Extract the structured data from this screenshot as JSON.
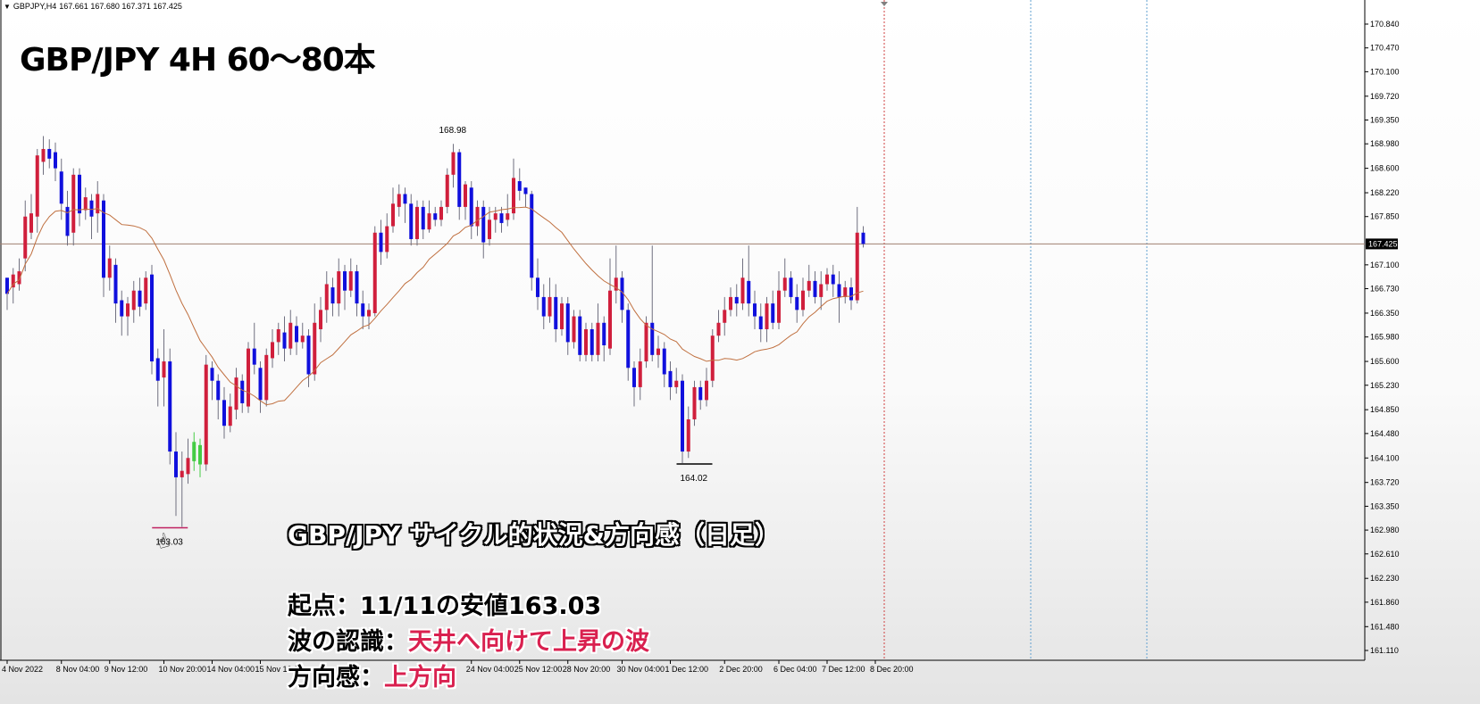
{
  "header": {
    "symbol": "GBPJPY,H4",
    "ohlc": "167.661 167.680 167.371 167.425"
  },
  "title": "GBP/JPY 4H 60～80本",
  "notes": {
    "heading": "GBP/JPY サイクル的状況&方向感（日足）",
    "line1_label": "起点：",
    "line1_value": "11/11の安値163.03",
    "line2_label": "波の認識：",
    "line2_value": "天井へ向けて上昇の波",
    "line3_label": "方向感：",
    "line3_value": "上方向"
  },
  "colors": {
    "bull": "#d01f3c",
    "bear": "#1010dd",
    "ma": "#c07040",
    "current_price_line": "#a08070",
    "vline_red": "#d04040",
    "vline_blue": "#60a0d0",
    "low_marker_magenta": "#c02060",
    "low_marker_black": "#000000",
    "highlight_green": "#44cc44"
  },
  "icons": {
    "cursor": "hand-cursor-icon"
  },
  "chart_data": {
    "type": "candlestick",
    "price_axis": {
      "ylim": [
        161.11,
        171.0
      ],
      "ticks": [
        170.84,
        170.47,
        170.1,
        169.72,
        169.35,
        168.98,
        168.6,
        168.22,
        167.85,
        167.1,
        166.73,
        166.35,
        165.98,
        165.6,
        165.23,
        164.85,
        164.48,
        164.1,
        163.72,
        163.35,
        162.98,
        162.61,
        162.23,
        161.86,
        161.48,
        161.11
      ],
      "tick_labels": [
        "170.840",
        "170.470",
        "170.100",
        "169.720",
        "169.350",
        "168.980",
        "168.600",
        "168.220",
        "167.850",
        "167.100",
        "166.730",
        "166.350",
        "165.980",
        "165.600",
        "165.230",
        "164.850",
        "164.480",
        "164.100",
        "163.720",
        "163.350",
        "162.980",
        "162.610",
        "162.230",
        "161.860",
        "161.480",
        "161.110"
      ],
      "current_price": 167.425,
      "current_price_label": "167.425"
    },
    "time_axis": {
      "labels": [
        "4 Nov 2022",
        "8 Nov 04:00",
        "9 Nov 12:00",
        "10 Nov 20:00",
        "14 Nov 04:00",
        "15 Nov 12:00",
        "24 Nov 04:00",
        "25 Nov 12:00",
        "28 Nov 20:00",
        "30 Nov 04:00",
        "1 Dec 12:00",
        "2 Dec 20:00",
        "6 Dec 04:00",
        "7 Dec 12:00",
        "8 Dec 20:00"
      ],
      "label_bars": [
        0,
        9,
        17,
        26,
        34,
        42,
        77,
        85,
        93,
        102,
        110,
        119,
        128,
        136,
        144
      ]
    },
    "annotations": [
      {
        "text": "168.98",
        "bar": 74,
        "price": 168.98,
        "pos": "above"
      },
      {
        "text": "164.02",
        "bar": 114,
        "price": 164.02,
        "pos": "below"
      },
      {
        "text": "163.03",
        "bar": 27,
        "price": 163.03,
        "pos": "below"
      }
    ],
    "candles": [
      [
        166.9,
        166.65,
        166.9,
        166.4
      ],
      [
        166.75,
        166.95,
        167.05,
        166.5
      ],
      [
        166.8,
        167.0,
        167.2,
        166.7
      ],
      [
        167.2,
        167.85,
        168.1,
        167.0
      ],
      [
        167.6,
        167.9,
        168.2,
        167.5
      ],
      [
        167.85,
        168.8,
        168.9,
        167.6
      ],
      [
        168.7,
        168.9,
        169.1,
        168.5
      ],
      [
        168.9,
        168.75,
        169.05,
        168.6
      ],
      [
        168.85,
        168.6,
        169.0,
        168.4
      ],
      [
        168.55,
        168.05,
        168.75,
        167.8
      ],
      [
        168.0,
        167.55,
        168.25,
        167.4
      ],
      [
        167.6,
        168.5,
        168.6,
        167.4
      ],
      [
        168.5,
        167.9,
        168.6,
        167.7
      ],
      [
        167.95,
        168.15,
        168.3,
        167.8
      ],
      [
        168.1,
        167.85,
        168.2,
        167.5
      ],
      [
        167.9,
        168.2,
        168.4,
        167.6
      ],
      [
        168.1,
        166.9,
        168.2,
        166.6
      ],
      [
        166.9,
        167.2,
        167.4,
        166.7
      ],
      [
        167.1,
        166.5,
        167.2,
        166.2
      ],
      [
        166.55,
        166.3,
        166.7,
        166.0
      ],
      [
        166.3,
        166.5,
        166.6,
        166.0
      ],
      [
        166.4,
        166.7,
        166.85,
        166.2
      ],
      [
        166.7,
        166.45,
        166.9,
        166.3
      ],
      [
        166.5,
        166.9,
        167.0,
        166.4
      ],
      [
        166.95,
        165.6,
        167.1,
        165.4
      ],
      [
        165.65,
        165.3,
        165.8,
        164.9
      ],
      [
        165.35,
        165.6,
        166.1,
        164.9
      ],
      [
        165.6,
        164.2,
        165.8,
        164.0
      ],
      [
        164.2,
        163.8,
        164.5,
        163.2
      ],
      [
        163.8,
        163.9,
        164.2,
        163.03
      ],
      [
        163.85,
        164.1,
        164.4,
        163.7
      ],
      [
        164.05,
        164.35,
        164.5,
        163.9
      ],
      [
        164.3,
        164.0,
        164.4,
        163.8
      ],
      [
        164.0,
        165.55,
        165.7,
        163.9
      ],
      [
        165.5,
        165.3,
        165.6,
        165.0
      ],
      [
        165.3,
        165.0,
        165.4,
        164.7
      ],
      [
        165.0,
        164.6,
        165.2,
        164.4
      ],
      [
        164.6,
        164.9,
        165.1,
        164.5
      ],
      [
        164.85,
        165.35,
        165.5,
        164.7
      ],
      [
        165.3,
        164.95,
        165.4,
        164.8
      ],
      [
        164.9,
        165.8,
        165.9,
        164.8
      ],
      [
        165.8,
        165.55,
        166.2,
        165.4
      ],
      [
        165.5,
        165.0,
        165.6,
        164.8
      ],
      [
        165.0,
        165.7,
        165.8,
        164.9
      ],
      [
        165.65,
        165.9,
        166.1,
        165.5
      ],
      [
        165.9,
        166.1,
        166.2,
        165.7
      ],
      [
        166.05,
        165.8,
        166.3,
        165.6
      ],
      [
        165.8,
        166.2,
        166.4,
        165.7
      ],
      [
        166.15,
        165.9,
        166.3,
        165.7
      ],
      [
        165.9,
        166.0,
        166.2,
        165.8
      ],
      [
        166.0,
        165.4,
        166.1,
        165.2
      ],
      [
        165.4,
        166.2,
        166.5,
        165.3
      ],
      [
        166.1,
        166.4,
        166.6,
        165.9
      ],
      [
        166.4,
        166.8,
        167.0,
        166.2
      ],
      [
        166.75,
        166.5,
        166.9,
        166.3
      ],
      [
        166.5,
        167.0,
        167.2,
        166.3
      ],
      [
        167.0,
        166.7,
        167.1,
        166.4
      ],
      [
        166.7,
        167.0,
        167.2,
        166.6
      ],
      [
        167.0,
        166.5,
        167.1,
        166.3
      ],
      [
        166.5,
        166.3,
        166.7,
        166.1
      ],
      [
        166.3,
        166.4,
        166.5,
        166.1
      ],
      [
        166.35,
        167.6,
        167.7,
        166.3
      ],
      [
        167.6,
        167.3,
        167.8,
        167.1
      ],
      [
        167.3,
        167.7,
        167.9,
        167.2
      ],
      [
        167.7,
        168.05,
        168.3,
        167.6
      ],
      [
        168.0,
        168.2,
        168.35,
        167.85
      ],
      [
        168.2,
        168.05,
        168.3,
        167.75
      ],
      [
        168.05,
        167.5,
        168.2,
        167.4
      ],
      [
        167.5,
        168.0,
        168.1,
        167.4
      ],
      [
        168.0,
        167.65,
        168.1,
        167.5
      ],
      [
        167.65,
        167.9,
        168.1,
        167.6
      ],
      [
        167.9,
        167.8,
        168.0,
        167.7
      ],
      [
        167.8,
        168.0,
        168.1,
        167.7
      ],
      [
        168.0,
        168.5,
        168.6,
        167.9
      ],
      [
        168.5,
        168.85,
        168.98,
        168.3
      ],
      [
        168.85,
        168.0,
        168.9,
        167.8
      ],
      [
        168.0,
        168.35,
        168.4,
        167.8
      ],
      [
        168.3,
        167.7,
        168.4,
        167.5
      ],
      [
        167.7,
        168.0,
        168.1,
        167.55
      ],
      [
        168.0,
        167.45,
        168.1,
        167.2
      ],
      [
        167.5,
        167.8,
        168.0,
        167.4
      ],
      [
        167.8,
        167.9,
        168.0,
        167.6
      ],
      [
        167.9,
        167.75,
        168.0,
        167.6
      ],
      [
        167.8,
        167.9,
        168.2,
        167.7
      ],
      [
        167.9,
        168.45,
        168.75,
        167.8
      ],
      [
        168.4,
        168.25,
        168.6,
        168.1
      ],
      [
        168.3,
        168.2,
        168.3,
        168.0
      ],
      [
        168.2,
        166.9,
        168.25,
        166.7
      ],
      [
        166.9,
        166.6,
        167.2,
        166.4
      ],
      [
        166.6,
        166.3,
        166.8,
        166.1
      ],
      [
        166.3,
        166.6,
        166.9,
        166.2
      ],
      [
        166.6,
        166.1,
        166.8,
        165.9
      ],
      [
        166.1,
        166.5,
        166.6,
        166.0
      ],
      [
        166.5,
        165.9,
        166.6,
        165.7
      ],
      [
        165.9,
        166.3,
        166.4,
        165.8
      ],
      [
        166.3,
        165.7,
        166.4,
        165.6
      ],
      [
        165.7,
        166.1,
        166.2,
        165.6
      ],
      [
        166.1,
        165.7,
        166.2,
        165.6
      ],
      [
        165.7,
        166.2,
        166.5,
        165.6
      ],
      [
        166.2,
        165.85,
        166.3,
        165.6
      ],
      [
        165.8,
        166.7,
        167.2,
        165.7
      ],
      [
        166.7,
        166.9,
        167.4,
        166.5
      ],
      [
        166.9,
        166.4,
        167.0,
        166.2
      ],
      [
        166.4,
        165.5,
        166.5,
        165.3
      ],
      [
        165.5,
        165.2,
        165.6,
        164.9
      ],
      [
        165.2,
        165.6,
        165.8,
        165.0
      ],
      [
        165.6,
        166.2,
        166.3,
        165.5
      ],
      [
        166.2,
        165.7,
        167.4,
        165.6
      ],
      [
        165.7,
        165.8,
        166.0,
        165.5
      ],
      [
        165.8,
        165.4,
        165.9,
        165.2
      ],
      [
        165.45,
        165.2,
        165.6,
        165.0
      ],
      [
        165.2,
        165.3,
        165.5,
        165.1
      ],
      [
        165.3,
        164.2,
        165.4,
        164.02
      ],
      [
        164.2,
        164.7,
        164.9,
        164.1
      ],
      [
        164.7,
        165.2,
        165.3,
        164.6
      ],
      [
        165.2,
        165.0,
        165.3,
        164.85
      ],
      [
        165.0,
        165.3,
        165.5,
        164.9
      ],
      [
        165.3,
        166.0,
        166.1,
        165.2
      ],
      [
        166.0,
        166.2,
        166.4,
        165.9
      ],
      [
        166.2,
        166.4,
        166.6,
        166.0
      ],
      [
        166.4,
        166.6,
        166.75,
        166.3
      ],
      [
        166.6,
        166.5,
        166.8,
        166.3
      ],
      [
        166.5,
        166.9,
        167.2,
        166.4
      ],
      [
        166.85,
        166.5,
        167.4,
        166.3
      ],
      [
        166.5,
        166.3,
        166.7,
        166.1
      ],
      [
        166.3,
        166.1,
        166.5,
        165.9
      ],
      [
        166.1,
        166.5,
        166.6,
        165.9
      ],
      [
        166.5,
        166.2,
        166.7,
        166.1
      ],
      [
        166.2,
        166.7,
        167.0,
        166.1
      ],
      [
        166.7,
        166.9,
        167.2,
        166.6
      ],
      [
        166.9,
        166.6,
        167.0,
        166.5
      ],
      [
        166.6,
        166.4,
        166.8,
        166.2
      ],
      [
        166.4,
        166.7,
        166.9,
        166.3
      ],
      [
        166.7,
        166.85,
        167.1,
        166.6
      ],
      [
        166.85,
        166.6,
        167.0,
        166.5
      ],
      [
        166.6,
        166.8,
        167.0,
        166.4
      ],
      [
        166.8,
        166.95,
        167.05,
        166.7
      ],
      [
        166.95,
        166.8,
        167.1,
        166.6
      ],
      [
        166.8,
        166.6,
        167.0,
        166.2
      ],
      [
        166.6,
        166.75,
        166.85,
        166.5
      ],
      [
        166.75,
        166.55,
        166.9,
        166.4
      ],
      [
        166.55,
        167.6,
        168.0,
        166.5
      ],
      [
        167.6,
        167.425,
        167.7,
        167.37
      ]
    ],
    "ma_label": "",
    "green_bars": [
      31,
      32
    ]
  }
}
